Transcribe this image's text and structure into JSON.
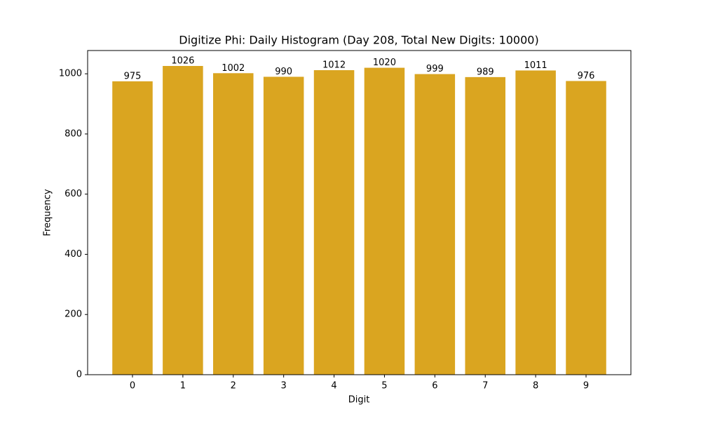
{
  "chart_data": {
    "type": "bar",
    "title": "Digitize Phi: Daily Histogram (Day 208, Total New Digits: 10000)",
    "x_label": "Digit",
    "y_label": "Frequency",
    "categories": [
      "0",
      "1",
      "2",
      "3",
      "4",
      "5",
      "6",
      "7",
      "8",
      "9"
    ],
    "values": [
      975,
      1026,
      1002,
      990,
      1012,
      1020,
      999,
      989,
      1011,
      976
    ],
    "color": "#daa520",
    "ylim": [
      0,
      1077.3
    ],
    "yticks": [
      0,
      200,
      400,
      600,
      800,
      1000
    ],
    "grid": false,
    "data_labels": true
  }
}
